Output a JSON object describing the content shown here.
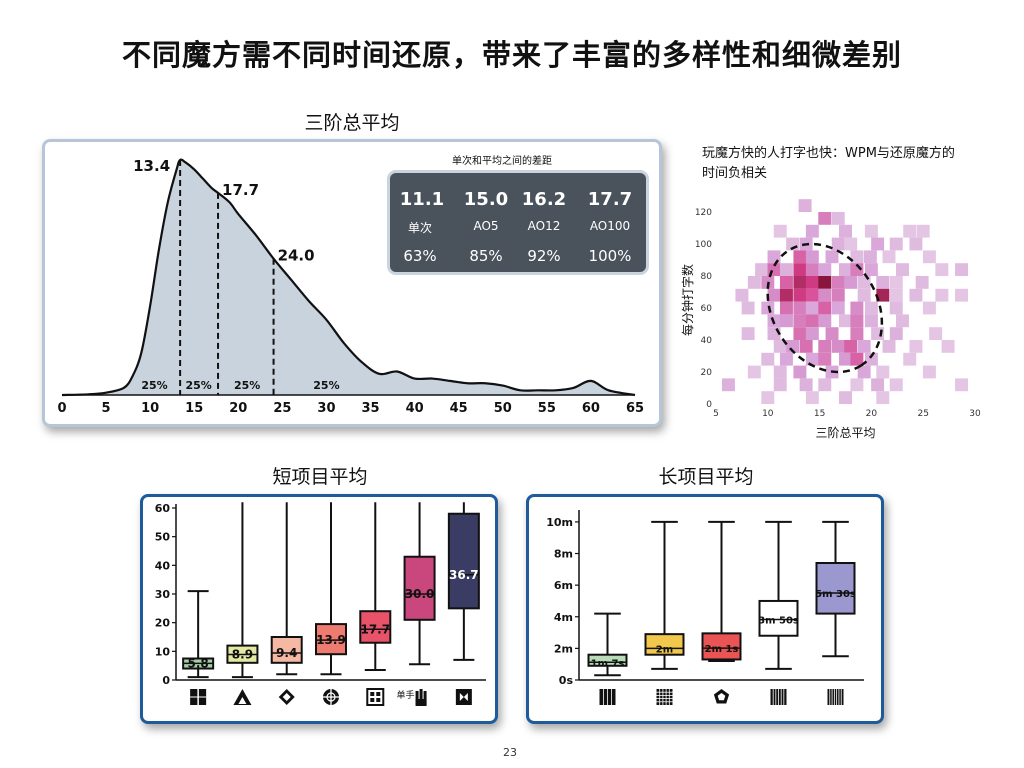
{
  "slide": {
    "title": "不同魔方需不同时间还原，带来了丰富的多样性和细微差别",
    "page_number": "23"
  },
  "colors": {
    "hist_fill": "#c9d3dd",
    "hist_line": "#111111",
    "stats_bg": "#4a535c",
    "panel_border_light": "#b6c6d8",
    "panel_border_dark": "#1f5a9a",
    "heat_low": "#efe3ef",
    "heat_high": "#7a0f2e"
  },
  "hist": {
    "section_title": "三阶总平均",
    "stats": {
      "caption": "单次和平均之间的差距",
      "items": [
        {
          "value": "11.1",
          "label": "单次",
          "pct": "63%"
        },
        {
          "value": "15.0",
          "label": "AO5",
          "pct": "85%"
        },
        {
          "value": "16.2",
          "label": "AO12",
          "pct": "92%"
        },
        {
          "value": "17.7",
          "label": "AO100",
          "pct": "100%"
        }
      ]
    }
  },
  "scatter": {
    "caption_line1": "玩魔方快的人打字也快：WPM与还原魔方的",
    "caption_line2": "时间负相关"
  },
  "short": {
    "section_title": "短项目平均"
  },
  "long": {
    "section_title": "长项目平均"
  },
  "chart_data": [
    {
      "type": "area",
      "title": "三阶总平均",
      "x": [
        0,
        3,
        5,
        7,
        8,
        9,
        10,
        11,
        12,
        13,
        13.4,
        14,
        15,
        16,
        17,
        17.7,
        19,
        20,
        22,
        24,
        26,
        28,
        30,
        32,
        34,
        36,
        38,
        40,
        42,
        44,
        46,
        48,
        50,
        52,
        54,
        56,
        58,
        60,
        62,
        65
      ],
      "y": [
        0,
        0.3,
        1,
        3,
        8,
        18,
        38,
        62,
        82,
        96,
        100,
        99,
        96,
        92,
        88,
        86,
        82,
        77,
        68,
        58,
        49,
        40,
        32,
        22,
        14,
        9,
        10,
        7,
        7,
        6,
        5,
        5,
        4,
        2,
        2,
        2,
        3,
        6,
        2,
        0
      ],
      "xlim": [
        0,
        65
      ],
      "xticks": [
        0,
        5,
        10,
        15,
        20,
        25,
        30,
        35,
        40,
        45,
        50,
        55,
        60,
        65
      ],
      "markers": [
        {
          "x": 13.4,
          "label": "13.4"
        },
        {
          "x": 17.7,
          "label": "17.7"
        },
        {
          "x": 24.0,
          "label": "24.0"
        }
      ],
      "quartile_labels": [
        {
          "x": 10.5,
          "label": "25%"
        },
        {
          "x": 15.5,
          "label": "25%"
        },
        {
          "x": 21.0,
          "label": "25%"
        },
        {
          "x": 30.0,
          "label": "25%"
        }
      ],
      "grid": false
    },
    {
      "type": "heatmap",
      "xlabel": "三阶总平均",
      "ylabel": "每分钟打字数",
      "xlim": [
        5,
        30
      ],
      "ylim": [
        0,
        130
      ],
      "xticks": [
        5,
        10,
        15,
        20,
        25,
        30
      ],
      "yticks": [
        0,
        20,
        40,
        60,
        80,
        100,
        120
      ],
      "cell_w": 1.25,
      "cell_h": 8,
      "cells": [
        [
          13.6,
          124,
          0.25
        ],
        [
          15.5,
          116,
          0.45
        ],
        [
          16.8,
          116,
          0.2
        ],
        [
          11.2,
          108,
          0.15
        ],
        [
          14.3,
          108,
          0.3
        ],
        [
          17.5,
          108,
          0.25
        ],
        [
          20.0,
          108,
          0.15
        ],
        [
          23.7,
          108,
          0.15
        ],
        [
          25.0,
          108,
          0.15
        ],
        [
          12.4,
          100,
          0.2
        ],
        [
          13.7,
          100,
          0.3
        ],
        [
          16.8,
          100,
          0.25
        ],
        [
          18.0,
          100,
          0.15
        ],
        [
          20.6,
          100,
          0.3
        ],
        [
          22.4,
          100,
          0.2
        ],
        [
          24.3,
          100,
          0.2
        ],
        [
          10.6,
          92,
          0.3
        ],
        [
          13.1,
          92,
          0.55
        ],
        [
          14.3,
          92,
          0.35
        ],
        [
          16.2,
          92,
          0.3
        ],
        [
          18.6,
          92,
          0.2
        ],
        [
          19.9,
          92,
          0.25
        ],
        [
          21.7,
          92,
          0.15
        ],
        [
          25.6,
          92,
          0.15
        ],
        [
          9.4,
          84,
          0.2
        ],
        [
          10.6,
          84,
          0.5
        ],
        [
          11.8,
          84,
          0.25
        ],
        [
          13.1,
          84,
          0.7
        ],
        [
          14.3,
          84,
          0.45
        ],
        [
          15.5,
          84,
          0.3
        ],
        [
          17.5,
          84,
          0.25
        ],
        [
          18.6,
          84,
          0.45
        ],
        [
          20.0,
          84,
          0.3
        ],
        [
          23.0,
          84,
          0.2
        ],
        [
          26.8,
          84,
          0.15
        ],
        [
          28.7,
          84,
          0.2
        ],
        [
          8.7,
          76,
          0.2
        ],
        [
          10.0,
          76,
          0.4
        ],
        [
          11.8,
          76,
          0.55
        ],
        [
          13.1,
          76,
          0.8
        ],
        [
          14.3,
          76,
          0.7
        ],
        [
          15.5,
          76,
          0.95
        ],
        [
          16.8,
          76,
          0.45
        ],
        [
          18.0,
          76,
          0.35
        ],
        [
          19.3,
          76,
          0.2
        ],
        [
          21.1,
          76,
          0.25
        ],
        [
          22.4,
          76,
          0.15
        ],
        [
          24.9,
          76,
          0.2
        ],
        [
          7.5,
          68,
          0.2
        ],
        [
          10.6,
          68,
          0.4
        ],
        [
          11.8,
          68,
          0.8
        ],
        [
          13.1,
          68,
          0.7
        ],
        [
          14.3,
          68,
          0.6
        ],
        [
          15.5,
          68,
          0.4
        ],
        [
          16.8,
          68,
          0.45
        ],
        [
          19.3,
          68,
          0.2
        ],
        [
          21.1,
          68,
          0.85
        ],
        [
          22.4,
          68,
          0.15
        ],
        [
          24.3,
          68,
          0.2
        ],
        [
          26.8,
          68,
          0.15
        ],
        [
          28.7,
          68,
          0.15
        ],
        [
          8.1,
          60,
          0.2
        ],
        [
          10.0,
          60,
          0.3
        ],
        [
          11.8,
          60,
          0.5
        ],
        [
          13.1,
          60,
          0.45
        ],
        [
          14.3,
          60,
          0.3
        ],
        [
          15.5,
          60,
          0.55
        ],
        [
          16.8,
          60,
          0.3
        ],
        [
          18.6,
          60,
          0.4
        ],
        [
          20.0,
          60,
          0.2
        ],
        [
          22.4,
          60,
          0.2
        ],
        [
          25.6,
          60,
          0.15
        ],
        [
          10.6,
          52,
          0.3
        ],
        [
          11.8,
          52,
          0.35
        ],
        [
          13.1,
          52,
          0.45
        ],
        [
          14.3,
          52,
          0.5
        ],
        [
          15.5,
          52,
          0.35
        ],
        [
          17.5,
          52,
          0.2
        ],
        [
          18.6,
          52,
          0.45
        ],
        [
          20.0,
          52,
          0.25
        ],
        [
          23.0,
          52,
          0.2
        ],
        [
          8.1,
          44,
          0.2
        ],
        [
          10.6,
          44,
          0.25
        ],
        [
          13.1,
          44,
          0.5
        ],
        [
          14.3,
          44,
          0.35
        ],
        [
          16.2,
          44,
          0.4
        ],
        [
          18.6,
          44,
          0.45
        ],
        [
          20.6,
          44,
          0.2
        ],
        [
          22.4,
          44,
          0.25
        ],
        [
          26.2,
          44,
          0.15
        ],
        [
          11.2,
          36,
          0.2
        ],
        [
          12.4,
          36,
          0.35
        ],
        [
          13.7,
          36,
          0.5
        ],
        [
          15.5,
          36,
          0.45
        ],
        [
          16.8,
          36,
          0.4
        ],
        [
          18.0,
          36,
          0.55
        ],
        [
          19.3,
          36,
          0.3
        ],
        [
          21.7,
          36,
          0.2
        ],
        [
          24.3,
          36,
          0.15
        ],
        [
          27.4,
          36,
          0.15
        ],
        [
          10.0,
          28,
          0.2
        ],
        [
          11.8,
          28,
          0.3
        ],
        [
          14.3,
          28,
          0.3
        ],
        [
          15.5,
          28,
          0.45
        ],
        [
          17.5,
          28,
          0.35
        ],
        [
          18.6,
          28,
          0.55
        ],
        [
          20.0,
          28,
          0.25
        ],
        [
          23.7,
          28,
          0.15
        ],
        [
          8.7,
          20,
          0.15
        ],
        [
          11.2,
          20,
          0.2
        ],
        [
          13.1,
          20,
          0.35
        ],
        [
          16.2,
          20,
          0.3
        ],
        [
          19.3,
          20,
          0.3
        ],
        [
          21.1,
          20,
          0.15
        ],
        [
          25.6,
          20,
          0.15
        ],
        [
          6.2,
          12,
          0.25
        ],
        [
          11.2,
          12,
          0.2
        ],
        [
          13.7,
          12,
          0.25
        ],
        [
          15.5,
          12,
          0.2
        ],
        [
          18.6,
          12,
          0.15
        ],
        [
          20.6,
          12,
          0.25
        ],
        [
          22.4,
          12,
          0.15
        ],
        [
          28.7,
          12,
          0.15
        ],
        [
          10.0,
          4,
          0.15
        ],
        [
          14.3,
          4,
          0.15
        ],
        [
          17.5,
          4,
          0.2
        ],
        [
          21.1,
          4,
          0.15
        ]
      ],
      "ellipse": {
        "cx": 15.5,
        "cy": 60,
        "rx": 4.2,
        "ry": 50,
        "rotation": -42
      }
    },
    {
      "type": "box",
      "title": "短项目平均",
      "ylim": [
        0,
        60
      ],
      "yticks": [
        0,
        10,
        20,
        30,
        40,
        50,
        60
      ],
      "boxes": [
        {
          "icon": "2x2-cube-icon",
          "min": 1,
          "q1": 4,
          "median": 5.8,
          "q3": 7.5,
          "max": 31,
          "label": "5.8",
          "color": "#a8d0a8"
        },
        {
          "icon": "pyraminx-icon",
          "min": 1,
          "q1": 6,
          "median": 8.9,
          "q3": 12,
          "max": 62,
          "label": "8.9",
          "color": "#e3e8a3"
        },
        {
          "icon": "skewb-icon",
          "min": 2,
          "q1": 6,
          "median": 9.4,
          "q3": 15,
          "max": 62,
          "label": "9.4",
          "color": "#f4b8a3"
        },
        {
          "icon": "megaminx-icon",
          "min": 2,
          "q1": 9,
          "median": 13.9,
          "q3": 19.5,
          "max": 62,
          "label": "13.9",
          "color": "#ee7b6f"
        },
        {
          "icon": "square-1-icon",
          "min": 3.5,
          "q1": 13,
          "median": 17.7,
          "q3": 24,
          "max": 62,
          "label": "17.7",
          "color": "#e8536a"
        },
        {
          "icon": "one-handed-icon",
          "min": 5.5,
          "q1": 21,
          "median": 30.0,
          "q3": 43,
          "max": 62,
          "label": "30.0",
          "color": "#c9477c"
        },
        {
          "icon": "clock-icon",
          "min": 7,
          "q1": 25,
          "median": 36.7,
          "q3": 58,
          "max": 62,
          "label": "36.7",
          "color": "#3a3c63"
        }
      ],
      "icon_text": "单手"
    },
    {
      "type": "box",
      "title": "长项目平均",
      "ylim": [
        0,
        10.5
      ],
      "yticks": [
        0,
        2,
        4,
        6,
        8,
        10
      ],
      "ytick_labels": [
        "0s",
        "2m",
        "4m",
        "6m",
        "8m",
        "10m"
      ],
      "boxes": [
        {
          "icon": "4x4-cube-icon",
          "min": 0.3,
          "q1": 0.9,
          "median": 1.12,
          "q3": 1.6,
          "max": 4.2,
          "label": "1m 7s",
          "color": "#b9dcb8"
        },
        {
          "icon": "5x5-cube-icon",
          "min": 0.7,
          "q1": 1.6,
          "median": 2.0,
          "q3": 2.9,
          "max": 10,
          "label": "2m",
          "color": "#f2c84c"
        },
        {
          "icon": "megaminx-icon",
          "min": 1.2,
          "q1": 1.3,
          "median": 2.02,
          "q3": 2.95,
          "max": 10,
          "label": "2m 1s",
          "color": "#ea5454"
        },
        {
          "icon": "6x6-cube-icon",
          "min": 0.7,
          "q1": 2.8,
          "median": 3.83,
          "q3": 5.0,
          "max": 10,
          "label": "3m 50s",
          "color": "#ffffff"
        },
        {
          "icon": "7x7-cube-icon",
          "min": 1.5,
          "q1": 4.2,
          "median": 5.5,
          "q3": 7.4,
          "max": 10,
          "label": "5m 30s",
          "color": "#9b98cf"
        }
      ]
    }
  ]
}
